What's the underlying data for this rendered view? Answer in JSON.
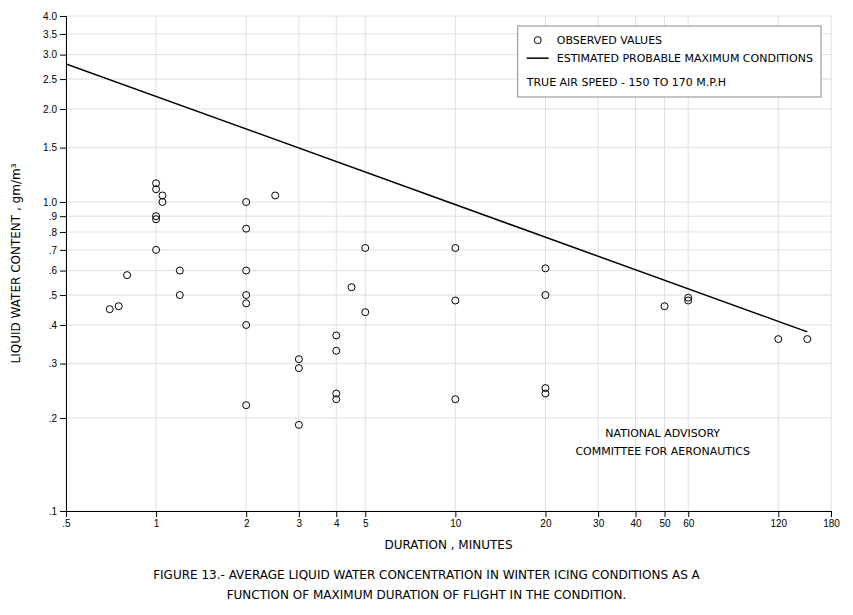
{
  "chart_data": {
    "type": "scatter",
    "title": "FIGURE 13.- AVERAGE LIQUID WATER CONCENTRATION IN WINTER ICING CONDITIONS AS A",
    "subtitle": "FUNCTION OF MAXIMUM DURATION OF FLIGHT IN THE CONDITION.",
    "x_label": "DURATION , MINUTES",
    "y_label": "LIQUID WATER CONTENT , gm/m³",
    "annotations": [
      "TRUE AIR SPEED - 150 TO 170 M.P.H",
      "NATIONAL ADVISORY",
      "COMMITTEE FOR AERONAUTICS"
    ],
    "log": true,
    "grid": true,
    "legend": "upper right",
    "xlim": [
      0.5,
      180
    ],
    "ylim": [
      0.1,
      4.0
    ],
    "xticks": [
      {
        "value": 0.5,
        "label": ".5"
      },
      1,
      2,
      3,
      4,
      5,
      10,
      20,
      30,
      40,
      50,
      60,
      120,
      180
    ],
    "yticks": [
      {
        "value": 0.1,
        "label": ".1"
      },
      {
        "value": 0.2,
        "label": ".2"
      },
      {
        "value": 0.3,
        "label": ".3"
      },
      {
        "value": 0.4,
        "label": ".4"
      },
      {
        "value": 0.5,
        "label": ".5"
      },
      {
        "value": 0.6,
        "label": ".6"
      },
      {
        "value": 0.7,
        "label": ".7"
      },
      {
        "value": 0.8,
        "label": ".8"
      },
      {
        "value": 0.9,
        "label": ".9"
      },
      {
        "value": 1.0,
        "label": "1.0"
      },
      1.5,
      {
        "value": 2.0,
        "label": "2.0"
      },
      2.5,
      {
        "value": 3.0,
        "label": "3.0"
      },
      3.5,
      {
        "value": 4.0,
        "label": "4.0"
      }
    ],
    "series": [
      {
        "name": "OBSERVED VALUES",
        "type": "scatter",
        "marker": "circle",
        "color": "#000000",
        "x": [
          0.7,
          0.75,
          0.8,
          1.0,
          1.0,
          1.0,
          1.0,
          1.0,
          1.05,
          1.05,
          1.2,
          1.2,
          2.0,
          2.0,
          2.0,
          2.0,
          2.0,
          2.0,
          2.0,
          2.5,
          3.0,
          3.0,
          3.0,
          4.0,
          4.0,
          4.0,
          4.0,
          4.5,
          5.0,
          5.0,
          10.0,
          10.0,
          10.0,
          20.0,
          20.0,
          20.0,
          20.0,
          50.0,
          60.0,
          60.0,
          120.0,
          150.0
        ],
        "values": [
          0.45,
          0.46,
          0.58,
          0.88,
          0.9,
          0.7,
          1.1,
          1.15,
          1.0,
          1.05,
          0.6,
          0.5,
          1.0,
          0.82,
          0.6,
          0.5,
          0.47,
          0.4,
          0.22,
          1.05,
          0.31,
          0.29,
          0.19,
          0.37,
          0.33,
          0.24,
          0.23,
          0.53,
          0.44,
          0.71,
          0.71,
          0.48,
          0.23,
          0.61,
          0.5,
          0.25,
          0.24,
          0.46,
          0.49,
          0.48,
          0.36,
          0.36
        ]
      },
      {
        "name": "ESTIMATED PROBABLE MAXIMUM CONDITIONS",
        "type": "line",
        "line_style": "solid",
        "color": "#000000",
        "x": [
          0.5,
          150
        ],
        "values": [
          2.8,
          0.38
        ]
      }
    ]
  }
}
